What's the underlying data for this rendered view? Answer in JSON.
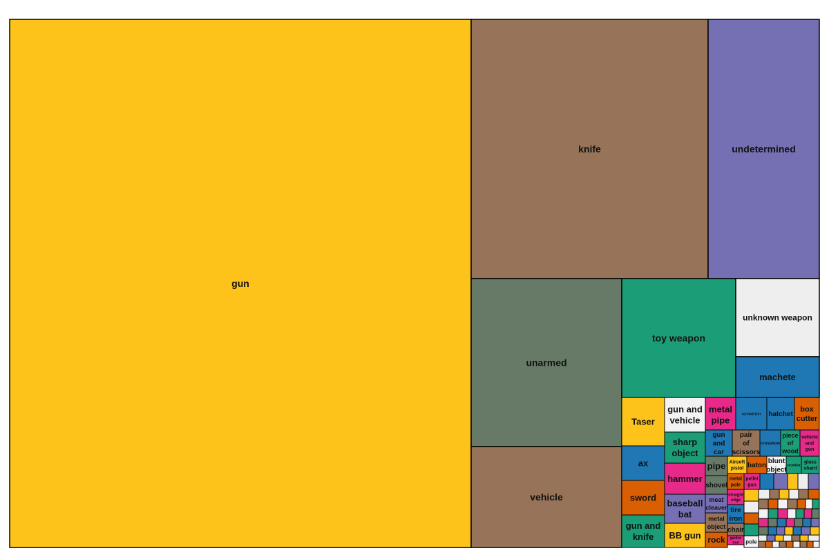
{
  "chart_data": {
    "type": "treemap",
    "labels": [
      {
        "text": "gun",
        "color": "#FDC31A"
      },
      {
        "text": "knife",
        "color": "#977459"
      },
      {
        "text": "undetermined",
        "color": "#7570B3"
      },
      {
        "text": "unarmed",
        "color": "#667A67"
      },
      {
        "text": "vehicle",
        "color": "#977459"
      },
      {
        "text": "toy weapon",
        "color": "#1B9E77"
      },
      {
        "text": "unknown weapon",
        "color": "#EEEEEE"
      },
      {
        "text": "machete",
        "color": "#1F78B4"
      },
      {
        "text": "Taser",
        "color": "#FDC31A"
      },
      {
        "text": "gun and vehicle",
        "color": "#F2F2F2"
      },
      {
        "text": "metal pipe",
        "color": "#E7298A"
      },
      {
        "text": "screwdriver",
        "color": "#1F78B4"
      },
      {
        "text": "hatchet",
        "color": "#1F78B4"
      },
      {
        "text": "box cutter",
        "color": "#D95F02"
      },
      {
        "text": "ax",
        "color": "#1F78B4"
      },
      {
        "text": "sharp object",
        "color": "#1B9E77"
      },
      {
        "text": "gun and car",
        "color": "#1F78B4"
      },
      {
        "text": "pair of scissors",
        "color": "#977459"
      },
      {
        "text": "crossbow",
        "color": "#1F78B4"
      },
      {
        "text": "piece of wood",
        "color": "#1B9E77"
      },
      {
        "text": "vehicle and gun",
        "color": "#E7298A"
      },
      {
        "text": "sword",
        "color": "#D95F02"
      },
      {
        "text": "hammer",
        "color": "#E7298A"
      },
      {
        "text": "pipe",
        "color": "#667A67"
      },
      {
        "text": "Airsoft pistol",
        "color": "#FDC31A"
      },
      {
        "text": "baton",
        "color": "#D95F02"
      },
      {
        "text": "blunt object",
        "color": "#F2F2F2"
      },
      {
        "text": "crowbar",
        "color": "#1B9E77"
      },
      {
        "text": "glass shard",
        "color": "#1B9E77"
      },
      {
        "text": "gun and knife",
        "color": "#1B9E77"
      },
      {
        "text": "baseball bat",
        "color": "#7570B3"
      },
      {
        "text": "shovel",
        "color": "#667A67"
      },
      {
        "text": "metal pole",
        "color": "#D95F02"
      },
      {
        "text": "pellet gun",
        "color": "#E7298A"
      },
      {
        "text": "BB gun",
        "color": "#FDC31A"
      },
      {
        "text": "meat cleaver",
        "color": "#7570B3"
      },
      {
        "text": "straight edge",
        "color": "#E7298A"
      },
      {
        "text": "tire iron",
        "color": "#1F78B4"
      },
      {
        "text": "metal object",
        "color": "#977459"
      },
      {
        "text": "chair",
        "color": "#977459"
      },
      {
        "text": "rock",
        "color": "#D95F02"
      },
      {
        "text": "garden tool",
        "color": "#E7298A"
      },
      {
        "text": "pole",
        "color": "#F2F2F2"
      }
    ],
    "small_category_colors": [
      "#1F78B4",
      "#1B9E77",
      "#977459",
      "#7570B3",
      "#E7298A",
      "#D95F02",
      "#FDC31A",
      "#667A67",
      "#F2F2F2",
      "#EEEEEE"
    ]
  }
}
